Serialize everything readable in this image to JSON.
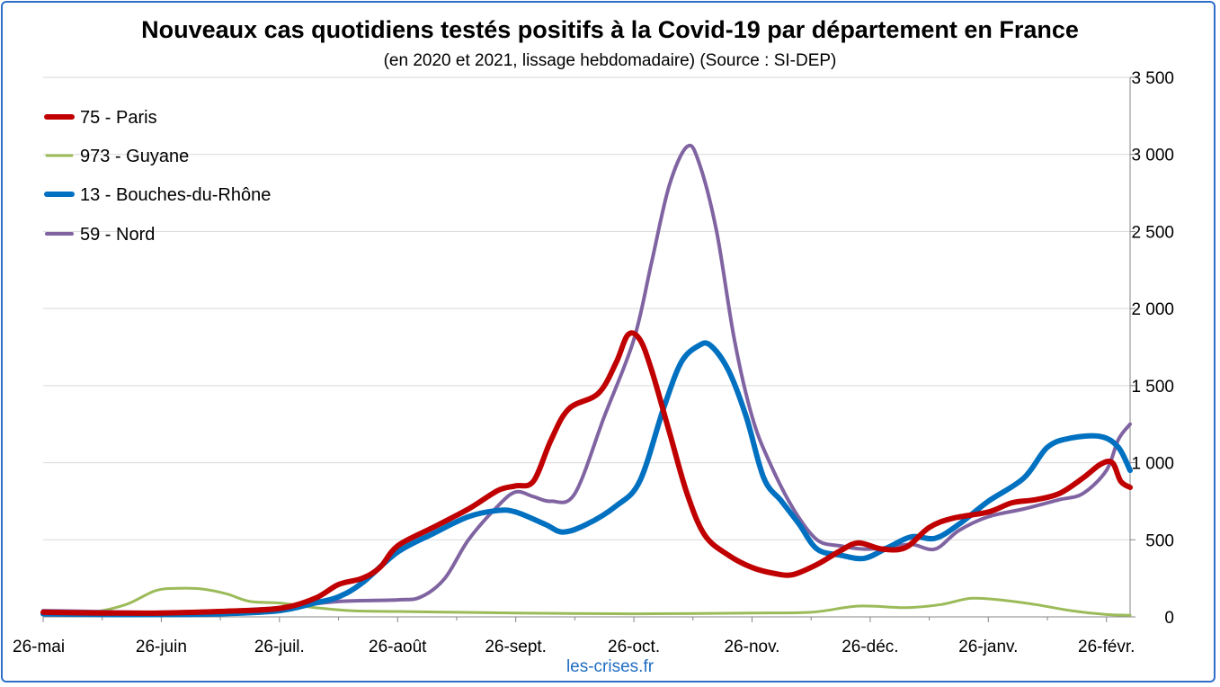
{
  "chart_data": {
    "type": "line",
    "title": "Nouveaux cas quotidiens testés positifs à la Covid-19 par département en France",
    "subtitle": "(en 2020 et 2021, lissage hebdomadaire) (Source : SI-DEP)",
    "x_tick_labels": [
      "26-mai",
      "26-juin",
      "26-juil.",
      "26-août",
      "26-sept.",
      "26-oct.",
      "26-nov.",
      "26-déc.",
      "26-janv.",
      "26-févr."
    ],
    "x_units": "months since 26-mai",
    "xlim": [
      0,
      9.2
    ],
    "ylim": [
      0,
      3500
    ],
    "y_ticks": [
      0,
      500,
      1000,
      1500,
      2000,
      2500,
      3000,
      3500
    ],
    "y_tick_labels": [
      "0",
      "500",
      "1 000",
      "1 500",
      "2 000",
      "2 500",
      "3 000",
      "3 500"
    ],
    "y_axis_position": "right",
    "grid": "horizontal",
    "legend_position": "top-left",
    "credit": "les-crises.fr",
    "series": [
      {
        "name": "75 - Paris",
        "color": "#c00000",
        "width": 6,
        "points": [
          [
            0,
            30
          ],
          [
            0.5,
            25
          ],
          [
            1,
            25
          ],
          [
            1.5,
            35
          ],
          [
            2,
            55
          ],
          [
            2.3,
            120
          ],
          [
            2.5,
            210
          ],
          [
            2.7,
            250
          ],
          [
            2.85,
            320
          ],
          [
            3,
            460
          ],
          [
            3.3,
            580
          ],
          [
            3.6,
            700
          ],
          [
            3.85,
            820
          ],
          [
            4,
            850
          ],
          [
            4.15,
            880
          ],
          [
            4.3,
            1150
          ],
          [
            4.45,
            1350
          ],
          [
            4.7,
            1450
          ],
          [
            4.85,
            1650
          ],
          [
            4.95,
            1830
          ],
          [
            5.05,
            1800
          ],
          [
            5.15,
            1600
          ],
          [
            5.3,
            1200
          ],
          [
            5.45,
            800
          ],
          [
            5.6,
            530
          ],
          [
            5.8,
            400
          ],
          [
            6,
            320
          ],
          [
            6.2,
            280
          ],
          [
            6.35,
            275
          ],
          [
            6.55,
            340
          ],
          [
            6.75,
            430
          ],
          [
            6.9,
            480
          ],
          [
            7.1,
            440
          ],
          [
            7.3,
            450
          ],
          [
            7.5,
            580
          ],
          [
            7.7,
            640
          ],
          [
            8,
            680
          ],
          [
            8.2,
            740
          ],
          [
            8.4,
            760
          ],
          [
            8.6,
            800
          ],
          [
            8.8,
            900
          ],
          [
            8.95,
            990
          ],
          [
            9.05,
            1000
          ],
          [
            9.12,
            880
          ],
          [
            9.2,
            840
          ]
        ]
      },
      {
        "name": "973 - Guyane",
        "color": "#9bbb59",
        "width": 3,
        "points": [
          [
            0,
            30
          ],
          [
            0.4,
            30
          ],
          [
            0.7,
            80
          ],
          [
            0.95,
            170
          ],
          [
            1.15,
            185
          ],
          [
            1.35,
            180
          ],
          [
            1.55,
            150
          ],
          [
            1.75,
            100
          ],
          [
            2,
            90
          ],
          [
            2.3,
            60
          ],
          [
            2.6,
            40
          ],
          [
            3,
            35
          ],
          [
            3.5,
            30
          ],
          [
            4,
            25
          ],
          [
            5,
            20
          ],
          [
            6,
            25
          ],
          [
            6.5,
            30
          ],
          [
            6.9,
            70
          ],
          [
            7.3,
            60
          ],
          [
            7.6,
            80
          ],
          [
            7.85,
            120
          ],
          [
            8.1,
            110
          ],
          [
            8.4,
            80
          ],
          [
            8.7,
            40
          ],
          [
            9,
            15
          ],
          [
            9.2,
            10
          ]
        ]
      },
      {
        "name": "13 - Bouches-du-Rhône",
        "color": "#0070c0",
        "width": 6,
        "points": [
          [
            0,
            20
          ],
          [
            0.5,
            15
          ],
          [
            1,
            15
          ],
          [
            1.5,
            20
          ],
          [
            2,
            40
          ],
          [
            2.3,
            90
          ],
          [
            2.5,
            130
          ],
          [
            2.7,
            220
          ],
          [
            3,
            420
          ],
          [
            3.3,
            540
          ],
          [
            3.6,
            650
          ],
          [
            3.85,
            690
          ],
          [
            4,
            680
          ],
          [
            4.25,
            600
          ],
          [
            4.4,
            550
          ],
          [
            4.6,
            600
          ],
          [
            4.85,
            720
          ],
          [
            5.05,
            880
          ],
          [
            5.25,
            1350
          ],
          [
            5.4,
            1650
          ],
          [
            5.55,
            1760
          ],
          [
            5.65,
            1760
          ],
          [
            5.8,
            1600
          ],
          [
            5.95,
            1300
          ],
          [
            6.1,
            900
          ],
          [
            6.25,
            750
          ],
          [
            6.4,
            600
          ],
          [
            6.55,
            440
          ],
          [
            6.75,
            400
          ],
          [
            6.95,
            380
          ],
          [
            7.15,
            450
          ],
          [
            7.35,
            520
          ],
          [
            7.55,
            510
          ],
          [
            7.75,
            600
          ],
          [
            8,
            750
          ],
          [
            8.3,
            900
          ],
          [
            8.5,
            1100
          ],
          [
            8.7,
            1160
          ],
          [
            8.95,
            1170
          ],
          [
            9.1,
            1100
          ],
          [
            9.2,
            950
          ]
        ]
      },
      {
        "name": "59 - Nord",
        "color": "#8064a2",
        "width": 4,
        "points": [
          [
            0,
            40
          ],
          [
            0.4,
            35
          ],
          [
            0.8,
            30
          ],
          [
            1,
            30
          ],
          [
            1.5,
            40
          ],
          [
            2,
            60
          ],
          [
            2.5,
            100
          ],
          [
            3,
            110
          ],
          [
            3.2,
            130
          ],
          [
            3.4,
            250
          ],
          [
            3.6,
            500
          ],
          [
            3.85,
            720
          ],
          [
            4,
            810
          ],
          [
            4.15,
            780
          ],
          [
            4.3,
            750
          ],
          [
            4.5,
            800
          ],
          [
            4.75,
            1300
          ],
          [
            5,
            1800
          ],
          [
            5.15,
            2300
          ],
          [
            5.3,
            2800
          ],
          [
            5.45,
            3050
          ],
          [
            5.55,
            2950
          ],
          [
            5.7,
            2500
          ],
          [
            5.85,
            1800
          ],
          [
            6,
            1300
          ],
          [
            6.15,
            1000
          ],
          [
            6.35,
            700
          ],
          [
            6.55,
            500
          ],
          [
            6.75,
            460
          ],
          [
            6.95,
            440
          ],
          [
            7.15,
            450
          ],
          [
            7.35,
            470
          ],
          [
            7.55,
            440
          ],
          [
            7.75,
            560
          ],
          [
            8,
            650
          ],
          [
            8.3,
            700
          ],
          [
            8.6,
            760
          ],
          [
            8.8,
            800
          ],
          [
            9,
            950
          ],
          [
            9.1,
            1150
          ],
          [
            9.2,
            1250
          ]
        ]
      }
    ]
  }
}
